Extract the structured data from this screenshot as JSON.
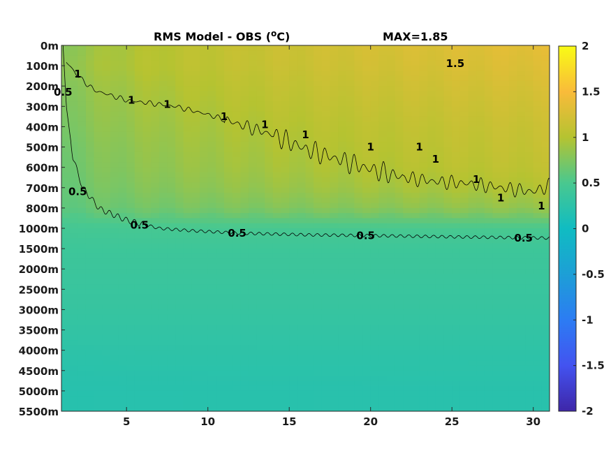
{
  "chart_data": {
    "type": "heatmap",
    "title": "RMS Model - OBS (",
    "title_unit_sup": "o",
    "title_unit_tail": "C)",
    "max_label": "MAX=1.85",
    "x": {
      "ticks": [
        5,
        10,
        15,
        20,
        25,
        30
      ],
      "tick_labels": [
        "5",
        "10",
        "15",
        "20",
        "25",
        "30"
      ],
      "range": [
        1,
        31
      ]
    },
    "y": {
      "tick_labels": [
        "0m",
        "100m",
        "200m",
        "300m",
        "400m",
        "500m",
        "600m",
        "700m",
        "800m",
        "1000m",
        "1500m",
        "2000m",
        "2500m",
        "3000m",
        "3500m",
        "4000m",
        "4500m",
        "5000m",
        "5500m"
      ],
      "tick_depths": [
        0,
        100,
        200,
        300,
        400,
        500,
        600,
        700,
        800,
        1000,
        1500,
        2000,
        2500,
        3000,
        3500,
        4000,
        4500,
        5000,
        5500
      ],
      "direction": "down"
    },
    "colorbar": {
      "min": -2,
      "max": 2,
      "ticks": [
        2,
        1.5,
        1,
        0.5,
        0,
        -0.5,
        -1,
        -1.5,
        -2
      ],
      "tick_labels": [
        "2",
        "1.5",
        "1",
        "0.5",
        "0",
        "-0.5",
        "-1",
        "-1.5",
        "-2"
      ],
      "colormap": "parula"
    },
    "field_profile": {
      "depths": [
        0,
        100,
        200,
        300,
        400,
        500,
        600,
        700,
        800,
        1000,
        1500,
        2000,
        2500,
        3000,
        3500,
        4000,
        4500,
        5000,
        5500
      ],
      "rms_day1": [
        0.7,
        0.75,
        0.7,
        0.68,
        0.66,
        0.62,
        0.6,
        0.58,
        0.56,
        0.45,
        0.4,
        0.38,
        0.36,
        0.34,
        0.3,
        0.26,
        0.22,
        0.2,
        0.2
      ],
      "rms_day31": [
        1.35,
        1.3,
        1.25,
        1.2,
        1.15,
        1.12,
        1.08,
        1.0,
        0.85,
        0.5,
        0.4,
        0.38,
        0.36,
        0.34,
        0.3,
        0.27,
        0.24,
        0.22,
        0.22
      ]
    },
    "contours": [
      {
        "level": 1,
        "depth_by_day": {
          "x": [
            1.3,
            2,
            3,
            5,
            8,
            10,
            12,
            14,
            16,
            18,
            20,
            22,
            24,
            26,
            28,
            30,
            31
          ],
          "depth": [
            80,
            150,
            220,
            270,
            300,
            340,
            390,
            440,
            510,
            560,
            610,
            650,
            670,
            680,
            700,
            720,
            690
          ]
        },
        "labels": [
          {
            "text": "1",
            "x": 2,
            "depth": 140
          },
          {
            "text": "1",
            "x": 5.3,
            "depth": 270
          },
          {
            "text": "1",
            "x": 7.5,
            "depth": 290
          },
          {
            "text": "1",
            "x": 11,
            "depth": 350
          },
          {
            "text": "1",
            "x": 13.5,
            "depth": 390
          },
          {
            "text": "1",
            "x": 16,
            "depth": 440
          },
          {
            "text": "1",
            "x": 20,
            "depth": 500
          },
          {
            "text": "1",
            "x": 23,
            "depth": 500
          },
          {
            "text": "1",
            "x": 24,
            "depth": 560
          },
          {
            "text": "1",
            "x": 26.5,
            "depth": 660
          },
          {
            "text": "1",
            "x": 28,
            "depth": 750
          },
          {
            "text": "1",
            "x": 30.5,
            "depth": 790
          }
        ]
      },
      {
        "level": 1.5,
        "labels": [
          {
            "text": "1.5",
            "x": 25.2,
            "depth": 90
          }
        ]
      },
      {
        "level": 0.5,
        "depth_by_day": {
          "x": [
            1.1,
            1.3,
            1.7,
            2.3,
            3.5,
            5,
            7,
            9,
            12,
            16,
            20,
            25,
            31
          ],
          "depth": [
            0,
            300,
            550,
            700,
            820,
            920,
            1000,
            1060,
            1120,
            1160,
            1180,
            1210,
            1240
          ]
        },
        "labels": [
          {
            "text": "0.5",
            "x": 1.1,
            "depth": 230
          },
          {
            "text": "0.5",
            "x": 2.0,
            "depth": 720
          },
          {
            "text": "0.5",
            "x": 5.8,
            "depth": 970
          },
          {
            "text": "0.5",
            "x": 11.8,
            "depth": 1120
          },
          {
            "text": "0.5",
            "x": 19.7,
            "depth": 1180
          },
          {
            "text": "0.5",
            "x": 29.4,
            "depth": 1240
          }
        ]
      }
    ]
  }
}
